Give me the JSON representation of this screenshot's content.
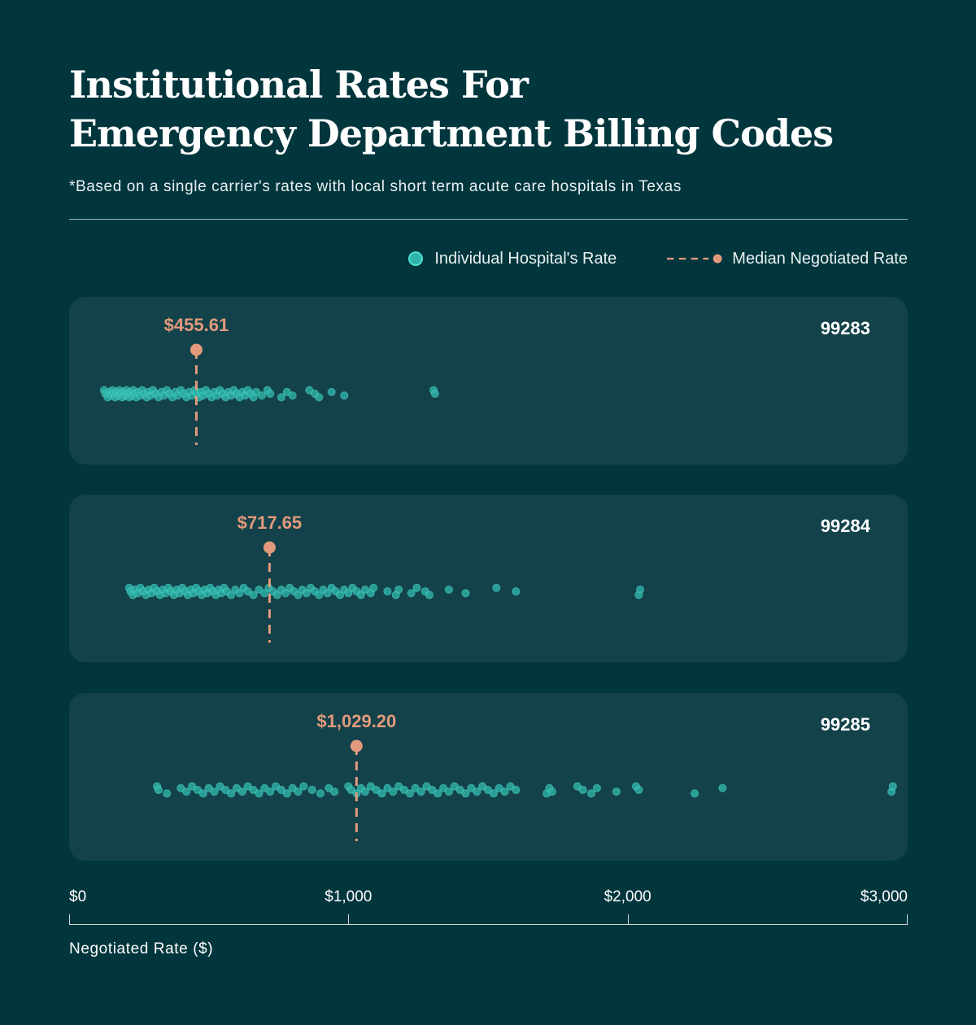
{
  "header": {
    "title_line1": "Institutional Rates For",
    "title_line2": "Emergency Department Billing Codes",
    "subtitle": "*Based on a single carrier's rates with local short term acute care hospitals in Texas"
  },
  "legend": {
    "individual": "Individual Hospital's Rate",
    "median": "Median Negotiated Rate"
  },
  "colors": {
    "background": "#02363d",
    "panel": "#13424a",
    "dot_fill": "#2fb3a8",
    "dot_stroke": "#4ee0d0",
    "median": "#e39a7c"
  },
  "chart_data": {
    "type": "scatter",
    "title": "Institutional Rates For Emergency Department Billing Codes",
    "xlabel": "Negotiated Rate ($)",
    "xlim": [
      0,
      3000
    ],
    "xticks": [
      0,
      1000,
      2000,
      3000
    ],
    "xtick_labels": [
      "$0",
      "$1,000",
      "$2,000",
      "$3,000"
    ],
    "series": [
      {
        "name": "99283",
        "median": 455.61,
        "median_label": "$455.61",
        "values": [
          125,
          130,
          138,
          145,
          150,
          155,
          160,
          165,
          170,
          175,
          180,
          185,
          190,
          195,
          200,
          205,
          210,
          215,
          220,
          225,
          230,
          235,
          240,
          248,
          255,
          262,
          270,
          278,
          285,
          292,
          300,
          310,
          320,
          330,
          340,
          350,
          360,
          370,
          380,
          390,
          400,
          410,
          420,
          430,
          440,
          450,
          458,
          465,
          472,
          480,
          490,
          500,
          510,
          520,
          530,
          540,
          550,
          560,
          570,
          580,
          590,
          600,
          610,
          620,
          630,
          640,
          650,
          660,
          670,
          690,
          710,
          720,
          760,
          780,
          800,
          860,
          880,
          895,
          940,
          985,
          1305,
          1310
        ]
      },
      {
        "name": "99284",
        "median": 717.65,
        "median_label": "$717.65",
        "values": [
          215,
          220,
          228,
          235,
          245,
          255,
          265,
          275,
          285,
          295,
          305,
          315,
          325,
          335,
          345,
          355,
          365,
          375,
          385,
          395,
          405,
          415,
          425,
          435,
          445,
          455,
          465,
          475,
          485,
          495,
          505,
          515,
          525,
          535,
          545,
          555,
          565,
          580,
          595,
          610,
          625,
          640,
          660,
          680,
          700,
          715,
          730,
          745,
          760,
          775,
          790,
          805,
          820,
          835,
          850,
          865,
          880,
          895,
          910,
          925,
          940,
          955,
          970,
          985,
          1000,
          1015,
          1030,
          1045,
          1060,
          1080,
          1090,
          1140,
          1170,
          1180,
          1225,
          1245,
          1275,
          1290,
          1360,
          1420,
          1530,
          1600,
          2040,
          2045
        ]
      },
      {
        "name": "99285",
        "median": 1029.2,
        "median_label": "$1,029.20",
        "values": [
          315,
          320,
          350,
          400,
          420,
          440,
          460,
          480,
          500,
          520,
          540,
          560,
          580,
          600,
          620,
          640,
          660,
          680,
          700,
          720,
          740,
          760,
          780,
          800,
          820,
          840,
          870,
          900,
          930,
          950,
          1000,
          1010,
          1030,
          1045,
          1060,
          1080,
          1100,
          1120,
          1140,
          1160,
          1180,
          1200,
          1220,
          1240,
          1260,
          1280,
          1300,
          1320,
          1340,
          1360,
          1380,
          1400,
          1420,
          1440,
          1460,
          1480,
          1500,
          1520,
          1540,
          1560,
          1580,
          1600,
          1710,
          1720,
          1730,
          1820,
          1840,
          1870,
          1890,
          1960,
          2030,
          2040,
          2240,
          2340,
          2945,
          2950
        ]
      }
    ]
  }
}
